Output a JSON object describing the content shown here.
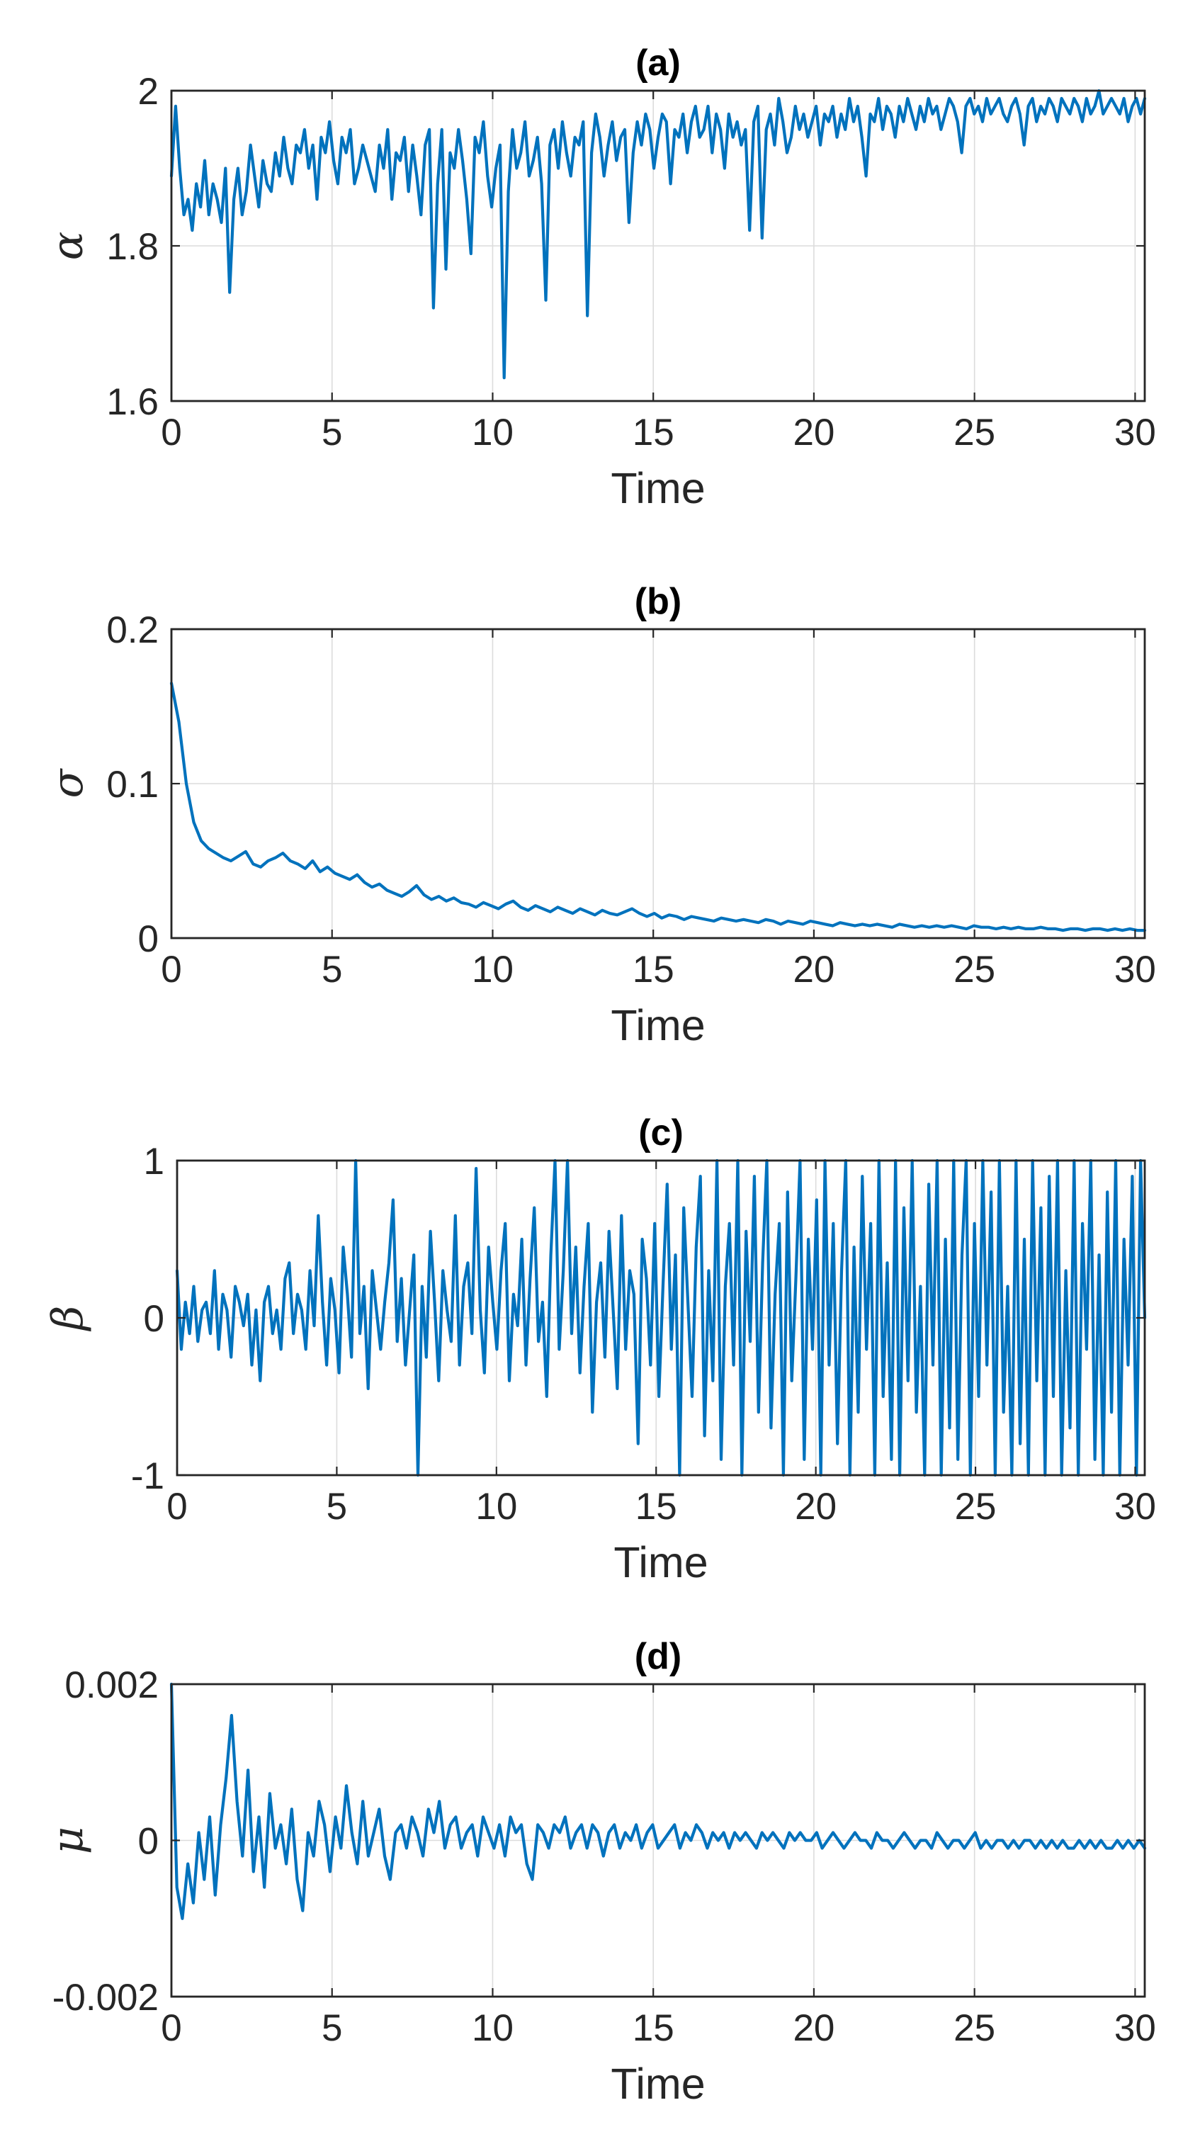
{
  "colors": {
    "series": "#0072BD",
    "axis": "#262626",
    "grid": "#dcdcdc"
  },
  "chart_data": [
    {
      "type": "line",
      "title": "(a)",
      "xlabel": "Time",
      "ylabel": "α",
      "xlim": [
        0,
        30.3
      ],
      "ylim": [
        1.6,
        2.0
      ],
      "xticks": [
        0,
        5,
        10,
        15,
        20,
        25,
        30
      ],
      "xtick_labels": [
        "0",
        "5",
        "10",
        "15",
        "20",
        "25",
        "30"
      ],
      "yticks": [
        1.6,
        1.8,
        2.0
      ],
      "ytick_labels": [
        "1.6",
        "1.8",
        "2"
      ],
      "series": [
        {
          "name": "α",
          "x_start": 0,
          "x_end": 30.3,
          "values": [
            1.89,
            1.98,
            1.9,
            1.84,
            1.86,
            1.82,
            1.88,
            1.85,
            1.91,
            1.84,
            1.88,
            1.86,
            1.83,
            1.9,
            1.74,
            1.86,
            1.9,
            1.84,
            1.87,
            1.93,
            1.89,
            1.85,
            1.91,
            1.88,
            1.87,
            1.92,
            1.89,
            1.94,
            1.9,
            1.88,
            1.93,
            1.92,
            1.95,
            1.9,
            1.93,
            1.86,
            1.94,
            1.92,
            1.96,
            1.91,
            1.88,
            1.94,
            1.92,
            1.95,
            1.88,
            1.9,
            1.93,
            1.91,
            1.89,
            1.87,
            1.93,
            1.9,
            1.95,
            1.86,
            1.92,
            1.91,
            1.94,
            1.87,
            1.93,
            1.89,
            1.84,
            1.93,
            1.95,
            1.72,
            1.88,
            1.95,
            1.77,
            1.92,
            1.9,
            1.95,
            1.91,
            1.86,
            1.79,
            1.94,
            1.92,
            1.96,
            1.89,
            1.85,
            1.9,
            1.93,
            1.63,
            1.87,
            1.95,
            1.9,
            1.92,
            1.96,
            1.89,
            1.91,
            1.94,
            1.88,
            1.73,
            1.93,
            1.95,
            1.9,
            1.96,
            1.92,
            1.89,
            1.94,
            1.93,
            1.96,
            1.71,
            1.92,
            1.97,
            1.94,
            1.89,
            1.93,
            1.96,
            1.91,
            1.94,
            1.95,
            1.83,
            1.92,
            1.96,
            1.93,
            1.97,
            1.95,
            1.9,
            1.94,
            1.97,
            1.96,
            1.88,
            1.95,
            1.94,
            1.97,
            1.92,
            1.96,
            1.98,
            1.94,
            1.95,
            1.98,
            1.92,
            1.97,
            1.95,
            1.9,
            1.97,
            1.94,
            1.96,
            1.93,
            1.95,
            1.82,
            1.96,
            1.98,
            1.81,
            1.95,
            1.97,
            1.93,
            1.99,
            1.96,
            1.92,
            1.94,
            1.98,
            1.95,
            1.97,
            1.94,
            1.96,
            1.98,
            1.93,
            1.97,
            1.96,
            1.98,
            1.94,
            1.97,
            1.95,
            1.99,
            1.96,
            1.98,
            1.94,
            1.89,
            1.97,
            1.96,
            1.99,
            1.95,
            1.98,
            1.97,
            1.94,
            1.98,
            1.96,
            1.99,
            1.97,
            1.95,
            1.98,
            1.96,
            1.99,
            1.97,
            1.98,
            1.95,
            1.97,
            1.99,
            1.98,
            1.96,
            1.92,
            1.98,
            1.99,
            1.97,
            1.98,
            1.96,
            1.99,
            1.97,
            1.98,
            1.99,
            1.97,
            1.96,
            1.98,
            1.99,
            1.97,
            1.93,
            1.98,
            1.99,
            1.96,
            1.98,
            1.97,
            1.99,
            1.98,
            1.96,
            1.99,
            1.98,
            1.97,
            1.99,
            1.98,
            1.96,
            1.99,
            1.97,
            1.98,
            2.0,
            1.97,
            1.98,
            1.99,
            1.98,
            1.97,
            1.99,
            1.96,
            1.98,
            1.99,
            1.97,
            1.99
          ]
        }
      ]
    },
    {
      "type": "line",
      "title": "(b)",
      "xlabel": "Time",
      "ylabel": "σ",
      "xlim": [
        0,
        30.3
      ],
      "ylim": [
        0,
        0.2
      ],
      "xticks": [
        0,
        5,
        10,
        15,
        20,
        25,
        30
      ],
      "xtick_labels": [
        "0",
        "5",
        "10",
        "15",
        "20",
        "25",
        "30"
      ],
      "yticks": [
        0,
        0.1,
        0.2
      ],
      "ytick_labels": [
        "0",
        "0.1",
        "0.2"
      ],
      "series": [
        {
          "name": "σ",
          "x_start": 0,
          "x_end": 30.3,
          "values": [
            0.165,
            0.14,
            0.1,
            0.075,
            0.063,
            0.058,
            0.055,
            0.052,
            0.05,
            0.053,
            0.056,
            0.048,
            0.046,
            0.05,
            0.052,
            0.055,
            0.05,
            0.048,
            0.045,
            0.05,
            0.043,
            0.046,
            0.042,
            0.04,
            0.038,
            0.041,
            0.036,
            0.033,
            0.035,
            0.031,
            0.029,
            0.027,
            0.03,
            0.034,
            0.028,
            0.025,
            0.027,
            0.024,
            0.026,
            0.023,
            0.022,
            0.02,
            0.023,
            0.021,
            0.019,
            0.022,
            0.024,
            0.02,
            0.018,
            0.021,
            0.019,
            0.017,
            0.02,
            0.018,
            0.016,
            0.019,
            0.017,
            0.015,
            0.018,
            0.016,
            0.015,
            0.017,
            0.019,
            0.016,
            0.014,
            0.016,
            0.013,
            0.015,
            0.014,
            0.012,
            0.014,
            0.013,
            0.012,
            0.011,
            0.013,
            0.012,
            0.011,
            0.012,
            0.011,
            0.01,
            0.012,
            0.011,
            0.009,
            0.011,
            0.01,
            0.009,
            0.011,
            0.01,
            0.009,
            0.008,
            0.01,
            0.009,
            0.008,
            0.009,
            0.008,
            0.009,
            0.008,
            0.007,
            0.009,
            0.008,
            0.007,
            0.008,
            0.007,
            0.008,
            0.007,
            0.008,
            0.007,
            0.006,
            0.008,
            0.007,
            0.007,
            0.006,
            0.007,
            0.006,
            0.007,
            0.006,
            0.006,
            0.007,
            0.006,
            0.006,
            0.005,
            0.006,
            0.006,
            0.005,
            0.006,
            0.006,
            0.005,
            0.006,
            0.005,
            0.006,
            0.005,
            0.005
          ]
        }
      ]
    },
    {
      "type": "line",
      "title": "(c)",
      "xlabel": "Time",
      "ylabel": "β",
      "xlim": [
        0,
        30.3
      ],
      "ylim": [
        -1,
        1
      ],
      "xticks": [
        0,
        5,
        10,
        15,
        20,
        25,
        30
      ],
      "xtick_labels": [
        "0",
        "5",
        "10",
        "15",
        "20",
        "25",
        "30"
      ],
      "yticks": [
        -1,
        0,
        1
      ],
      "ytick_labels": [
        "-1",
        "0",
        "1"
      ],
      "series": [
        {
          "name": "β",
          "x_start": 0,
          "x_end": 30.3,
          "values": [
            0.3,
            -0.2,
            0.1,
            -0.1,
            0.2,
            -0.15,
            0.05,
            0.1,
            -0.1,
            0.3,
            -0.2,
            0.15,
            0.05,
            -0.25,
            0.2,
            0.1,
            -0.05,
            0.15,
            -0.3,
            0.05,
            -0.4,
            0.1,
            0.2,
            -0.1,
            0.05,
            -0.2,
            0.25,
            0.35,
            -0.1,
            0.15,
            0.05,
            -0.2,
            0.3,
            -0.05,
            0.65,
            0.1,
            -0.3,
            0.25,
            0.05,
            -0.35,
            0.45,
            0.15,
            -0.25,
            1.0,
            -0.1,
            0.2,
            -0.45,
            0.3,
            0.05,
            -0.2,
            0.1,
            0.35,
            0.75,
            -0.15,
            0.25,
            -0.3,
            0.05,
            0.4,
            -1.0,
            0.2,
            -0.25,
            0.55,
            0.1,
            -0.4,
            0.3,
            0.05,
            -0.15,
            0.65,
            -0.3,
            0.2,
            0.35,
            -0.1,
            0.95,
            0.05,
            -0.35,
            0.45,
            0.1,
            -0.2,
            0.3,
            0.6,
            -0.4,
            0.15,
            -0.05,
            0.5,
            -0.3,
            0.25,
            0.7,
            -0.15,
            0.1,
            -0.5,
            0.4,
            1.0,
            -0.2,
            0.3,
            1.0,
            -0.1,
            0.45,
            -0.35,
            0.2,
            0.6,
            -0.6,
            0.1,
            0.35,
            -0.25,
            0.55,
            0.05,
            -0.45,
            0.65,
            -0.2,
            0.3,
            0.15,
            -0.8,
            0.5,
            0.25,
            -0.3,
            0.6,
            -0.5,
            0.2,
            0.85,
            -0.2,
            0.4,
            -1.0,
            0.7,
            0.1,
            -0.5,
            0.45,
            0.9,
            -0.75,
            0.3,
            -0.4,
            1.0,
            -0.9,
            0.2,
            0.6,
            -0.3,
            1.0,
            -1.0,
            0.55,
            -0.15,
            0.9,
            -0.6,
            0.35,
            1.0,
            -0.7,
            0.15,
            0.6,
            -1.0,
            0.8,
            -0.4,
            0.25,
            1.0,
            -0.9,
            0.5,
            -0.2,
            0.75,
            -1.0,
            1.0,
            -0.3,
            0.6,
            -0.8,
            0.3,
            1.0,
            -1.0,
            0.45,
            -0.6,
            0.9,
            -0.2,
            0.6,
            -1.0,
            1.0,
            -0.5,
            0.35,
            -0.9,
            1.0,
            -1.0,
            0.7,
            -0.4,
            1.0,
            -0.6,
            0.2,
            -1.0,
            0.85,
            -0.3,
            1.0,
            -1.0,
            0.5,
            -0.7,
            1.0,
            -0.9,
            0.4,
            1.0,
            -1.0,
            0.6,
            -0.5,
            1.0,
            -0.3,
            0.8,
            -1.0,
            1.0,
            -0.6,
            0.2,
            -1.0,
            1.0,
            -0.8,
            0.5,
            -1.0,
            1.0,
            -0.4,
            0.7,
            -1.0,
            0.9,
            -0.5,
            1.0,
            -1.0,
            0.3,
            -0.7,
            1.0,
            -1.0,
            0.6,
            -0.2,
            1.0,
            -0.9,
            0.4,
            -1.0,
            0.8,
            -0.6,
            1.0,
            -1.0,
            0.5,
            -0.3,
            0.9,
            -1.0,
            1.0,
            0.0
          ]
        }
      ]
    },
    {
      "type": "line",
      "title": "(d)",
      "xlabel": "Time",
      "ylabel": "μ",
      "xlim": [
        0,
        30.3
      ],
      "ylim": [
        -0.002,
        0.002
      ],
      "xticks": [
        0,
        5,
        10,
        15,
        20,
        25,
        30
      ],
      "xtick_labels": [
        "0",
        "5",
        "10",
        "15",
        "20",
        "25",
        "30"
      ],
      "yticks": [
        -0.002,
        0,
        0.002
      ],
      "ytick_labels": [
        "-0.002",
        "0",
        "0.002"
      ],
      "series": [
        {
          "name": "μ",
          "x_start": 0,
          "x_end": 30.3,
          "values": [
            0.002,
            -0.0006,
            -0.001,
            -0.0003,
            -0.0008,
            0.0001,
            -0.0005,
            0.0003,
            -0.0007,
            0.0002,
            0.0008,
            0.0016,
            0.0005,
            -0.0002,
            0.0009,
            -0.0004,
            0.0003,
            -0.0006,
            0.0006,
            -0.0001,
            0.0002,
            -0.0003,
            0.0004,
            -0.0005,
            -0.0009,
            0.0001,
            -0.0002,
            0.0005,
            0.0002,
            -0.0004,
            0.0003,
            -0.0001,
            0.0007,
            0.0001,
            -0.0003,
            0.0005,
            -0.0002,
            0.0001,
            0.0004,
            -0.0002,
            -0.0005,
            0.0001,
            0.0002,
            -0.0001,
            0.0003,
            0.0001,
            -0.0002,
            0.0004,
            0.0001,
            0.0005,
            -0.0001,
            0.0002,
            0.0003,
            -0.0001,
            0.0001,
            0.0002,
            -0.0002,
            0.0003,
            0.0001,
            -0.0001,
            0.0002,
            -0.0002,
            0.0003,
            0.0001,
            0.0002,
            -0.0003,
            -0.0005,
            0.0002,
            0.0001,
            -0.0001,
            0.0002,
            0.0001,
            0.0003,
            -0.0001,
            0.0001,
            0.0002,
            -0.0001,
            0.0002,
            0.0001,
            -0.0002,
            0.0001,
            0.0002,
            -0.0001,
            0.0001,
            0.0,
            0.0002,
            -0.0001,
            0.0001,
            0.0002,
            -0.0001,
            0.0,
            0.0001,
            0.0002,
            -0.0001,
            0.0001,
            0.0,
            0.0002,
            0.0001,
            -0.0001,
            0.0001,
            0.0,
            0.0001,
            -0.0001,
            0.0001,
            0.0,
            0.0001,
            0.0,
            -0.0001,
            0.0001,
            0.0,
            0.0001,
            0.0,
            -0.0001,
            0.0001,
            0.0,
            0.0001,
            0.0,
            0.0,
            0.0001,
            -0.0001,
            0.0,
            0.0001,
            0.0,
            -0.0001,
            0.0,
            0.0001,
            0.0,
            0.0,
            -0.0001,
            0.0001,
            0.0,
            0.0,
            -0.0001,
            0.0,
            0.0001,
            0.0,
            -0.0001,
            0.0,
            0.0,
            -0.0001,
            0.0001,
            0.0,
            -0.0001,
            0.0,
            0.0,
            -0.0001,
            0.0,
            0.0001,
            -0.0001,
            0.0,
            -0.0001,
            0.0,
            0.0,
            -0.0001,
            0.0,
            -0.0001,
            0.0,
            0.0,
            -0.0001,
            0.0,
            -0.0001,
            0.0,
            -0.0001,
            0.0,
            -0.0001,
            -0.0001,
            0.0,
            -0.0001,
            0.0,
            -0.0001,
            0.0,
            -0.0001,
            -0.0001,
            0.0,
            -0.0001,
            0.0,
            -0.0001,
            0.0,
            -0.0001
          ]
        }
      ]
    }
  ]
}
